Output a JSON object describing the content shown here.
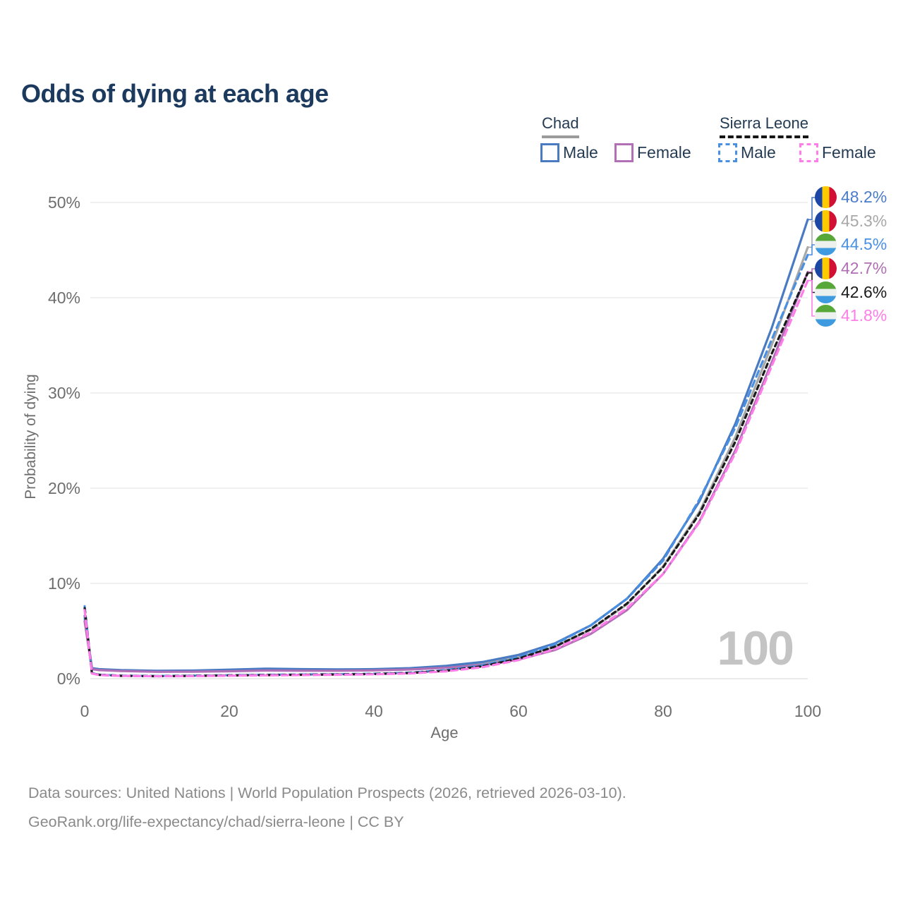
{
  "title": "Odds of dying at each age",
  "legend": {
    "chad_label": "Chad",
    "sierra_leone_label": "Sierra Leone",
    "male_label": "Male",
    "female_label": "Female"
  },
  "watermark": "100",
  "sources": {
    "line1": "Data sources: United Nations | World Population Prospects (2026, retrieved 2026-03-10).",
    "line2": "GeoRank.org/life-expectancy/chad/sierra-leone | CC BY"
  },
  "end_labels": [
    {
      "value": "48.2%",
      "series": "Chad Male",
      "flag": "chad",
      "color": "#4a7cc9",
      "pct": 48.2
    },
    {
      "value": "45.3%",
      "series": "Chad Both sexes",
      "flag": "chad",
      "color": "#a8a8a8",
      "pct": 45.3
    },
    {
      "value": "44.5%",
      "series": "Sierra Leone Male",
      "flag": "sierra-leone",
      "color": "#4a90e2",
      "pct": 44.5
    },
    {
      "value": "42.7%",
      "series": "Chad Female",
      "flag": "chad",
      "color": "#b06fb4",
      "pct": 42.7
    },
    {
      "value": "42.6%",
      "series": "Sierra Leone Both",
      "flag": "sierra-leone",
      "color": "#1a1a1a",
      "pct": 42.6
    },
    {
      "value": "41.8%",
      "series": "Sierra Leone Female",
      "flag": "sierra-leone",
      "color": "#ff7de9",
      "pct": 41.8
    }
  ],
  "chart_data": {
    "type": "line",
    "title": "Odds of dying at each age",
    "xlabel": "Age",
    "ylabel": "Probability of dying",
    "xlim": [
      0,
      100
    ],
    "ylim": [
      0,
      50
    ],
    "grid": true,
    "legend_position": "top-right",
    "x_ticks": [
      0,
      20,
      40,
      60,
      80,
      100
    ],
    "y_ticks": [
      "0%",
      "10%",
      "20%",
      "30%",
      "40%",
      "50%"
    ],
    "x": [
      0,
      1,
      2,
      5,
      10,
      15,
      20,
      25,
      30,
      35,
      40,
      45,
      50,
      55,
      60,
      65,
      70,
      75,
      80,
      85,
      90,
      95,
      100
    ],
    "series": [
      {
        "name": "chad-male",
        "country": "Chad",
        "sex": "Male",
        "color": "#4a7ac1",
        "dash": false,
        "values": [
          6.6,
          1.1,
          1.0,
          0.9,
          0.82,
          0.85,
          0.95,
          1.05,
          1.0,
          0.97,
          1.0,
          1.1,
          1.35,
          1.75,
          2.5,
          3.7,
          5.6,
          8.4,
          12.6,
          18.6,
          26.8,
          36.8,
          48.2
        ]
      },
      {
        "name": "chad-female",
        "country": "Chad",
        "sex": "Female",
        "color": "#b170b6",
        "dash": false,
        "values": [
          6.0,
          1.0,
          0.9,
          0.8,
          0.72,
          0.73,
          0.78,
          0.85,
          0.83,
          0.83,
          0.87,
          0.96,
          1.15,
          1.45,
          2.0,
          3.0,
          4.7,
          7.2,
          11.0,
          16.5,
          24.0,
          33.2,
          42.7
        ]
      },
      {
        "name": "chad-both",
        "country": "Chad",
        "sex": "Both sexes",
        "color": "#a8a8a8",
        "dash": false,
        "values": [
          6.3,
          1.05,
          0.95,
          0.85,
          0.77,
          0.79,
          0.87,
          0.95,
          0.92,
          0.9,
          0.93,
          1.03,
          1.25,
          1.6,
          2.25,
          3.35,
          5.15,
          7.8,
          11.8,
          17.5,
          25.4,
          35.0,
          45.3
        ]
      },
      {
        "name": "sl-male",
        "country": "Sierra Leone",
        "sex": "Male",
        "color": "#4a90e2",
        "dash": true,
        "values": [
          7.6,
          0.6,
          0.42,
          0.32,
          0.28,
          0.31,
          0.36,
          0.41,
          0.44,
          0.47,
          0.52,
          0.63,
          0.9,
          1.4,
          2.25,
          3.6,
          5.6,
          8.4,
          12.4,
          18.8,
          26.4,
          35.6,
          44.5
        ]
      },
      {
        "name": "sl-female",
        "country": "Sierra Leone",
        "sex": "Female",
        "color": "#ff7de9",
        "dash": true,
        "values": [
          7.2,
          0.54,
          0.38,
          0.29,
          0.25,
          0.27,
          0.31,
          0.35,
          0.38,
          0.41,
          0.46,
          0.55,
          0.77,
          1.2,
          1.95,
          3.1,
          4.85,
          7.4,
          11.0,
          16.4,
          23.7,
          32.8,
          41.8
        ]
      },
      {
        "name": "sl-both",
        "country": "Sierra Leone",
        "sex": "Both sexes",
        "color": "#1a1a1a",
        "dash": true,
        "values": [
          7.4,
          0.57,
          0.4,
          0.3,
          0.26,
          0.29,
          0.33,
          0.38,
          0.41,
          0.44,
          0.49,
          0.59,
          0.83,
          1.3,
          2.1,
          3.35,
          5.2,
          7.9,
          11.7,
          17.3,
          24.9,
          34.1,
          42.6
        ]
      }
    ]
  }
}
